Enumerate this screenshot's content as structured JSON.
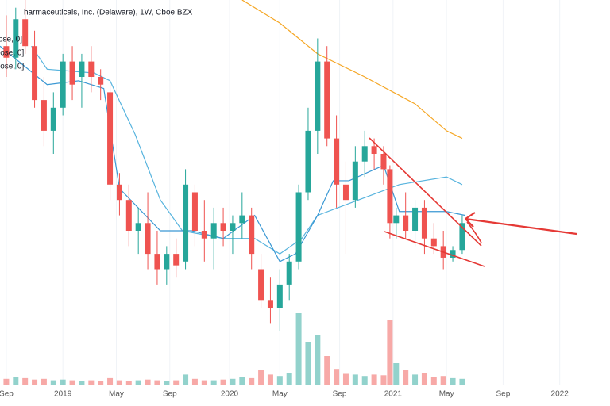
{
  "chart_data": {
    "type": "candlestick",
    "title": "harmaceuticals, Inc. (Delaware), 1W, Cboe BZX",
    "x": [
      0,
      3,
      6,
      9,
      12,
      15,
      18,
      21,
      24,
      27,
      30,
      33,
      36,
      39,
      42,
      45,
      48,
      51,
      54,
      57,
      60,
      63,
      66,
      69,
      72,
      75,
      78,
      81,
      84,
      87,
      90,
      93,
      96,
      99,
      102,
      105,
      108,
      111,
      114,
      117,
      120,
      122,
      124,
      127,
      130,
      133,
      136,
      139,
      142,
      145
    ],
    "open": [
      88,
      85,
      95,
      88,
      74,
      66,
      72,
      84,
      80,
      84,
      80,
      76,
      52,
      48,
      40,
      42,
      34,
      30,
      34,
      32,
      50,
      40,
      38,
      42,
      40,
      42,
      44,
      30,
      22,
      20,
      26,
      32,
      50,
      66,
      84,
      64,
      52,
      48,
      58,
      62,
      60,
      56,
      42,
      44,
      40,
      46,
      38,
      36,
      33,
      35
    ],
    "high": [
      96,
      98,
      100,
      92,
      80,
      76,
      86,
      88,
      86,
      88,
      82,
      78,
      55,
      52,
      46,
      50,
      40,
      36,
      38,
      56,
      52,
      48,
      46,
      46,
      44,
      50,
      46,
      34,
      28,
      30,
      34,
      52,
      72,
      90,
      88,
      70,
      58,
      62,
      66,
      64,
      62,
      57,
      46,
      50,
      48,
      48,
      42,
      40,
      36,
      44
    ],
    "low": [
      80,
      82,
      86,
      72,
      62,
      60,
      70,
      74,
      72,
      76,
      74,
      48,
      44,
      36,
      34,
      30,
      26,
      26,
      28,
      30,
      36,
      32,
      30,
      36,
      34,
      38,
      30,
      20,
      16,
      14,
      22,
      30,
      48,
      60,
      62,
      46,
      34,
      46,
      54,
      56,
      52,
      38,
      38,
      38,
      36,
      34,
      34,
      30,
      32,
      34
    ],
    "close": [
      85,
      95,
      88,
      74,
      66,
      72,
      84,
      78,
      84,
      80,
      78,
      52,
      48,
      40,
      42,
      34,
      30,
      34,
      31,
      52,
      40,
      38,
      42,
      40,
      42,
      44,
      34,
      22,
      20,
      26,
      32,
      50,
      66,
      84,
      64,
      52,
      48,
      58,
      62,
      60,
      56,
      42,
      44,
      40,
      46,
      38,
      36,
      33,
      35,
      42
    ],
    "volume": [
      8,
      10,
      9,
      7,
      8,
      6,
      7,
      6,
      5,
      6,
      5,
      9,
      6,
      5,
      6,
      7,
      6,
      5,
      6,
      14,
      8,
      6,
      6,
      7,
      8,
      10,
      9,
      20,
      14,
      12,
      16,
      100,
      60,
      70,
      40,
      22,
      15,
      14,
      12,
      14,
      13,
      90,
      30,
      20,
      14,
      16,
      10,
      12,
      9,
      8
    ],
    "up_color": "#26a69a",
    "down_color": "#ef5350",
    "lines": [
      {
        "name": "ose, 0]",
        "color": "#58b4de",
        "x": [
          8,
          13,
          28,
          33,
          41,
          49,
          56,
          69,
          79,
          87,
          94,
          99,
          112,
          125,
          140,
          145
        ],
        "values": [
          88,
          82,
          81,
          79,
          65,
          48,
          40,
          38,
          38,
          34,
          38,
          44,
          48,
          52,
          54,
          52
        ]
      },
      {
        "name": "lose, 0]",
        "color": "#3a98d4",
        "x": [
          -2,
          13,
          23,
          31,
          36,
          49,
          59,
          69,
          79,
          87,
          92,
          99,
          104,
          109,
          120,
          125,
          140,
          146
        ],
        "values": [
          88,
          78,
          79,
          77,
          51,
          40,
          40,
          38,
          44,
          32,
          34,
          44,
          53,
          53,
          57,
          45,
          45,
          44
        ]
      },
      {
        "name": "lose, 0]",
        "color": "#f5a623",
        "x": [
          75,
          87,
          99,
          114,
          130,
          140,
          145
        ],
        "values": [
          100,
          94,
          86,
          80,
          73,
          66,
          64
        ]
      }
    ],
    "xlim": [
      -2,
      192
    ],
    "ylim": [
      0,
      100
    ],
    "volume_lim": [
      0,
      100
    ],
    "xticks": [
      {
        "value": 0,
        "label": "Sep"
      },
      {
        "value": 18,
        "label": "2019"
      },
      {
        "value": 35,
        "label": "May"
      },
      {
        "value": 52,
        "label": "Sep"
      },
      {
        "value": 71,
        "label": "2020"
      },
      {
        "value": 87,
        "label": "May"
      },
      {
        "value": 106,
        "label": "Sep"
      },
      {
        "value": 123,
        "label": "2021"
      },
      {
        "value": 140,
        "label": "May"
      },
      {
        "value": 158,
        "label": "Sep"
      },
      {
        "value": 176,
        "label": "2022"
      }
    ],
    "grid": true
  }
}
